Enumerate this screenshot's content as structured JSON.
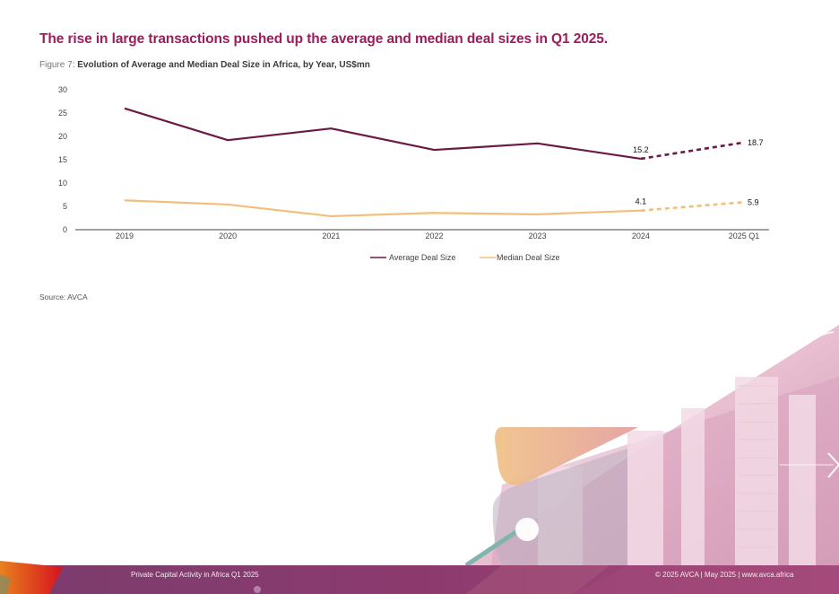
{
  "headline": "The rise in large transactions pushed up the average and median deal sizes in Q1 2025.",
  "figure": {
    "label": "Figure 7:",
    "title": "Evolution of Average and Median Deal Size in Africa, by Year, US$mn"
  },
  "source": "Source: AVCA",
  "footer": {
    "left": "Private Capital Activity in Africa Q1 2025",
    "right": "© 2025 AVCA  |  May 2025  |  www.avca.africa"
  },
  "colors": {
    "headline": "#9c1d5b",
    "average": "#6b1a45",
    "median": "#f3be7c",
    "footer_band": "#8c3a6e"
  },
  "chart_data": {
    "type": "line",
    "title": "Evolution of Average and Median Deal Size in Africa, by Year, US$mn",
    "xlabel": "",
    "ylabel": "",
    "categories": [
      "2019",
      "2020",
      "2021",
      "2022",
      "2023",
      "2024",
      "2025 Q1"
    ],
    "ylim": [
      0,
      30
    ],
    "yticks": [
      0,
      5,
      10,
      15,
      20,
      25,
      30
    ],
    "grid": false,
    "legend_position": "bottom-center",
    "series": [
      {
        "name": "Average Deal Size",
        "color": "#6b1a45",
        "values": [
          26.0,
          19.2,
          21.7,
          17.1,
          18.5,
          15.2,
          18.7
        ],
        "dashed_from_index": 5,
        "labels": {
          "5": "15.2",
          "6": "18.7"
        }
      },
      {
        "name": "Median Deal Size",
        "color": "#f3be7c",
        "values": [
          6.3,
          5.4,
          2.9,
          3.6,
          3.3,
          4.1,
          5.9
        ],
        "dashed_from_index": 5,
        "labels": {
          "5": "4.1",
          "6": "5.9"
        }
      }
    ]
  }
}
